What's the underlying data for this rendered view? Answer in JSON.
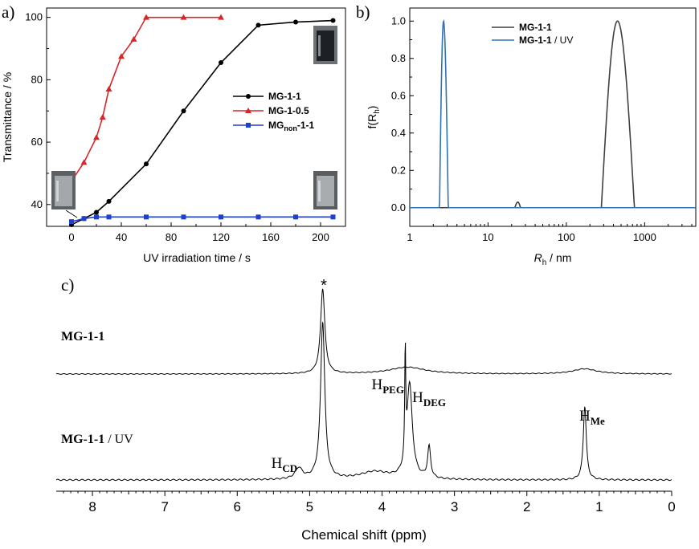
{
  "colors": {
    "black": "#000000",
    "red": "#d62728",
    "blue": "#1f3fcf",
    "steel": "#2e74b5",
    "gray": "#404040"
  },
  "chart_data": [
    {
      "panel_label": "a)",
      "type": "line",
      "xlabel": "UV irradiation time / s",
      "ylabel": "Transmittance / %",
      "xlim": [
        -20,
        220
      ],
      "ylim": [
        33,
        103
      ],
      "xticks": [
        0,
        40,
        80,
        120,
        160,
        200
      ],
      "yticks": [
        40,
        60,
        80,
        100
      ],
      "series": [
        {
          "name": "MG-1-1",
          "color": "#000000",
          "marker": "circle",
          "x": [
            0,
            10,
            20,
            30,
            60,
            90,
            120,
            150,
            180,
            210
          ],
          "y": [
            33.5,
            35.5,
            37.5,
            41,
            53,
            70,
            85.5,
            97.5,
            98.5,
            99
          ]
        },
        {
          "name": "MG-1-0.5",
          "color": "#d62728",
          "marker": "triangle",
          "x": [
            0,
            10,
            20,
            25,
            30,
            40,
            50,
            60,
            90,
            120
          ],
          "y": [
            47.5,
            53.5,
            61.5,
            68,
            77,
            87.5,
            93,
            100,
            100,
            100
          ]
        },
        {
          "name": "MG",
          "sub": "non",
          "suffix": "-1-1",
          "color": "#1f3fcf",
          "marker": "square",
          "x": [
            0,
            10,
            20,
            30,
            60,
            90,
            120,
            150,
            180,
            210
          ],
          "y": [
            34.5,
            35.5,
            36,
            36,
            36,
            36,
            36,
            36,
            36,
            36
          ]
        }
      ]
    },
    {
      "panel_label": "b)",
      "type": "line",
      "xscale": "log",
      "xlabel_main": "R",
      "xlabel_sub": "h",
      "xlabel_unit": " / nm",
      "ylabel_main": "f(R",
      "ylabel_sub": "h",
      "ylabel_close": ")",
      "xlim": [
        1,
        4500
      ],
      "ylim": [
        -0.1,
        1.07
      ],
      "xticks": [
        1,
        10,
        100,
        1000
      ],
      "xtick_labels": [
        "1",
        "10",
        "100",
        "1000"
      ],
      "yticks": [
        0.0,
        0.2,
        0.4,
        0.6,
        0.8,
        1.0
      ],
      "ytick_labels": [
        "0.0",
        "0.2",
        "0.4",
        "0.6",
        "0.8",
        "1.0"
      ],
      "series": [
        {
          "name": "MG-1-1",
          "color": "#404040",
          "peaks": [
            {
              "center": 450,
              "low": 280,
              "high": 740,
              "height": 1.0
            },
            {
              "center": 24,
              "low": 22,
              "high": 26,
              "height": 0.03
            }
          ]
        },
        {
          "name": "MG-1-1",
          "name_suffix": " / UV",
          "color": "#2e74b5",
          "peaks": [
            {
              "center": 2.7,
              "low": 2.4,
              "high": 3.1,
              "height": 1.0
            }
          ]
        }
      ]
    },
    {
      "panel_label": "c)",
      "type": "line",
      "xlabel": "Chemical shift (ppm)",
      "xlim": [
        8.5,
        0
      ],
      "xticks": [
        8,
        7,
        6,
        5,
        4,
        3,
        2,
        1,
        0
      ],
      "series": [
        {
          "name": "MG-1-1",
          "name_suffix": "",
          "star": "*",
          "peaks": [
            {
              "center": 4.82,
              "width": 0.035,
              "height": 1.0
            },
            {
              "center": 3.65,
              "width": 0.3,
              "height": 0.08
            },
            {
              "center": 1.2,
              "width": 0.2,
              "height": 0.06
            }
          ]
        },
        {
          "name": "MG-1-1",
          "name_suffix": " / UV",
          "peaks": [
            {
              "center": 5.15,
              "width": 0.06,
              "height": 0.07
            },
            {
              "center": 4.82,
              "width": 0.035,
              "height": 1.0
            },
            {
              "center": 4.1,
              "width": 0.25,
              "height": 0.05
            },
            {
              "center": 3.68,
              "width": 0.008,
              "height": 0.68
            },
            {
              "center": 3.62,
              "width": 0.045,
              "height": 0.6
            },
            {
              "center": 3.35,
              "width": 0.025,
              "height": 0.2
            },
            {
              "center": 1.2,
              "width": 0.025,
              "height": 0.47
            }
          ],
          "annotations": [
            {
              "main": "H",
              "sub": "CD",
              "ppm": 5.35
            },
            {
              "main": "H",
              "sub": "PEG",
              "ppm": 3.92
            },
            {
              "main": "H",
              "sub": "DEG",
              "ppm": 3.35
            },
            {
              "main": "H",
              "sub": "Me",
              "ppm": 1.1
            }
          ]
        }
      ]
    }
  ]
}
